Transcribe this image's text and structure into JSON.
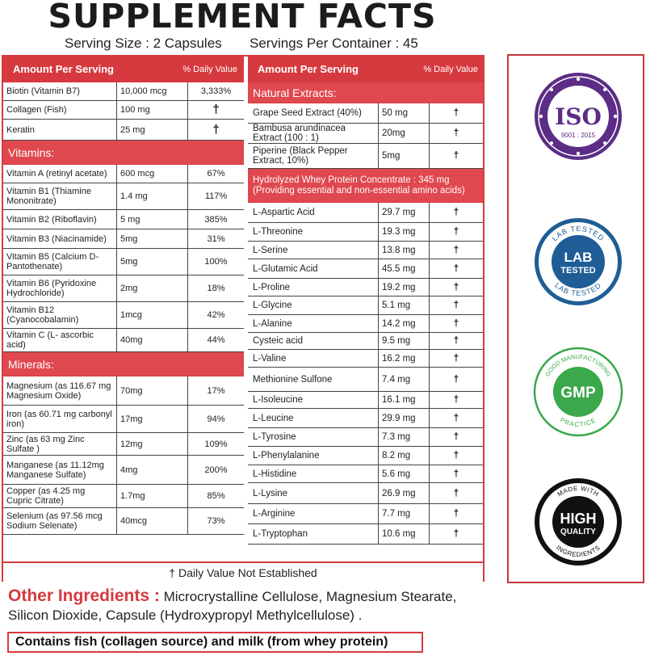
{
  "title": "SUPPLEMENT FACTS",
  "serving_size": "Serving Size : 2 Capsules",
  "servings_per_container": "Servings Per Container : 45",
  "left": {
    "header": {
      "amount": "Amount Per Serving",
      "dv": "% Daily Value"
    },
    "top_rows": [
      {
        "name": "Biotin (Vitamin B7)",
        "amount": "10,000 mcg",
        "dv": "3,333%"
      },
      {
        "name": "Collagen (Fish)",
        "amount": "100 mg",
        "dv": "†"
      },
      {
        "name": "Keratin",
        "amount": "25 mg",
        "dv": "†"
      }
    ],
    "vitamins_label": "Vitamins:",
    "vitamins": [
      {
        "name": "Vitamin A (retinyl acetate)",
        "amount": "600 mcg",
        "dv": "67%"
      },
      {
        "name": "Vitamin B1 (Thiamine Mononitrate)",
        "amount": "1.4 mg",
        "dv": "117%"
      },
      {
        "name": "Vitamin B2 (Riboflavin)",
        "amount": "5 mg",
        "dv": "385%"
      },
      {
        "name": "Vitamin B3 (Niacinamide)",
        "amount": "5mg",
        "dv": "31%"
      },
      {
        "name": "Vitamin B5 (Calcium D-Pantothenate)",
        "amount": "5mg",
        "dv": "100%"
      },
      {
        "name": "Vitamin B6 (Pyridoxine Hydrochloride)",
        "amount": "2mg",
        "dv": "18%"
      },
      {
        "name": "Vitamin B12 (Cyanocobalamin)",
        "amount": "1mcg",
        "dv": "42%"
      },
      {
        "name": "Vitamin C (L- ascorbic acid)",
        "amount": "40mg",
        "dv": "44%"
      }
    ],
    "minerals_label": "Minerals:",
    "minerals": [
      {
        "name": "Magnesium (as 116.67 mg Magnesium Oxide)",
        "amount": "70mg",
        "dv": "17%"
      },
      {
        "name": "Iron (as 60.71 mg carbonyl iron)",
        "amount": "17mg",
        "dv": "94%"
      },
      {
        "name": "Zinc (as 63 mg Zinc Sulfate )",
        "amount": "12mg",
        "dv": "109%"
      },
      {
        "name": "Manganese (as 11.12mg Manganese Sulfate)",
        "amount": "4mg",
        "dv": "200%"
      },
      {
        "name": "Copper (as 4.25 mg Cupric Citrate)",
        "amount": "1.7mg",
        "dv": "85%"
      },
      {
        "name": "Selenium (as 97.56 mcg Sodium Selenate)",
        "amount": "40mcg",
        "dv": "73%"
      }
    ]
  },
  "right": {
    "header": {
      "amount": "Amount Per Serving",
      "dv": "% Daily Value"
    },
    "natural_label": "Natural Extracts:",
    "natural": [
      {
        "name": "Grape Seed Extract (40%)",
        "amount": "50 mg",
        "dv": "†"
      },
      {
        "name": "Bambusa arundinacea Extract (100 : 1)",
        "amount": "20mg",
        "dv": "†"
      },
      {
        "name": "Piperine (Black Pepper Extract, 10%)",
        "amount": "5mg",
        "dv": "†"
      }
    ],
    "whey_label": "Hydrolyzed Whey Protein Concentrate : 345 mg (Providing essential and non-essential amino acids)",
    "amino": [
      {
        "name": "L-Aspartic Acid",
        "amount": "29.7 mg",
        "dv": "†"
      },
      {
        "name": "L-Threonine",
        "amount": "19.3 mg",
        "dv": "†"
      },
      {
        "name": "L-Serine",
        "amount": "13.8 mg",
        "dv": "†"
      },
      {
        "name": "L-Glutamic Acid",
        "amount": "45.5 mg",
        "dv": "†"
      },
      {
        "name": "L-Proline",
        "amount": "19.2 mg",
        "dv": "†"
      },
      {
        "name": "L-Glycine",
        "amount": "5.1 mg",
        "dv": "†"
      },
      {
        "name": "L-Alanine",
        "amount": "14.2 mg",
        "dv": "†"
      },
      {
        "name": "Cysteic acid",
        "amount": "9.5 mg",
        "dv": "†"
      },
      {
        "name": "L-Valine",
        "amount": "16.2 mg",
        "dv": "†"
      },
      {
        "name": "Methionine Sulfone",
        "amount": "7.4 mg",
        "dv": "†"
      },
      {
        "name": "L-Isoleucine",
        "amount": "16.1 mg",
        "dv": "†"
      },
      {
        "name": "L-Leucine",
        "amount": "29.9 mg",
        "dv": "†"
      },
      {
        "name": "L-Tyrosine",
        "amount": "7.3 mg",
        "dv": "†"
      },
      {
        "name": "L-Phenylalanine",
        "amount": "8.2 mg",
        "dv": "†"
      },
      {
        "name": "L-Histidine",
        "amount": "5.6 mg",
        "dv": "†"
      },
      {
        "name": "L-Lysine",
        "amount": "26.9 mg",
        "dv": "†"
      },
      {
        "name": "L-Arginine",
        "amount": "7.7 mg",
        "dv": "†"
      },
      {
        "name": "L-Tryptophan",
        "amount": "10.6 mg",
        "dv": "†"
      }
    ]
  },
  "footnote": "† Daily Value Not Established",
  "other_ingredients": {
    "label": "Other Ingredients :",
    "text": "Microcrystalline Cellulose, Magnesium Stearate, Silicon Dioxide, Capsule (Hydroxypropyl Methylcellulose) ."
  },
  "contains": "Contains fish (collagen source) and milk (from whey protein)",
  "badges": {
    "iso": {
      "main": "ISO",
      "sub": "9001 : 2015",
      "color": "#5b2d86"
    },
    "lab": {
      "main1": "LAB",
      "main2": "TESTED",
      "ring_top": "LAB TESTED",
      "ring_bottom": "LAB TESTED",
      "color": "#1f5d96"
    },
    "gmp": {
      "main": "GMP",
      "ring_top": "GOOD MANUFACTURING",
      "ring_bottom": "PRACTICE",
      "color": "#3aa84b"
    },
    "hq": {
      "main1": "HIGH",
      "main2": "QUALITY",
      "ring_top": "MADE WITH",
      "ring_bottom": "INGREDIENTS",
      "color": "#111111"
    }
  },
  "colors": {
    "accent": "#d63a3f",
    "section": "#e0484f"
  }
}
